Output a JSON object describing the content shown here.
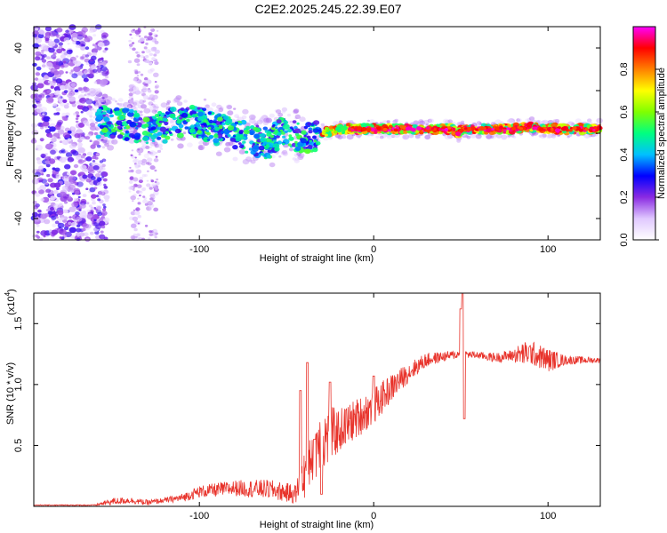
{
  "title": "C2E2.2025.245.22.39.E07",
  "chart_data": [
    {
      "type": "heatmap",
      "title": "",
      "xlabel": "Height of straight line (km)",
      "ylabel": "Frequency (Hz)",
      "xlim": [
        -195,
        130
      ],
      "ylim": [
        -50,
        50
      ],
      "xticks": [
        -100,
        0,
        100
      ],
      "yticks": [
        -40,
        -20,
        0,
        20,
        40
      ],
      "colorbar": {
        "label": "Normalized spectral amplitude",
        "range": [
          0,
          1
        ],
        "ticks": [
          "0.0",
          "0.2",
          "0.4",
          "0.6",
          "0.8"
        ],
        "tick_values": [
          0.0,
          0.2,
          0.4,
          0.6,
          0.8
        ],
        "colors": [
          "#ffffff",
          "#e0c8ff",
          "#8a2be2",
          "#0000ff",
          "#00c0ff",
          "#00ff80",
          "#80ff00",
          "#ffff00",
          "#ff8000",
          "#ff0000",
          "#ff00ff"
        ]
      },
      "ridge": {
        "x": [
          -152,
          -140,
          -130,
          -120,
          -110,
          -100,
          -90,
          -80,
          -70,
          -60,
          -55,
          -50,
          -40,
          -35,
          -30,
          -20,
          -10,
          0,
          20,
          40,
          45,
          48,
          52,
          60,
          80,
          90,
          100,
          110,
          130
        ],
        "y": [
          5,
          4,
          2,
          3,
          6,
          5,
          2,
          0,
          -3,
          -5,
          0,
          1,
          -3,
          -2,
          0,
          2,
          2,
          2,
          2,
          2,
          2,
          0,
          2,
          2,
          2,
          3,
          2,
          2,
          2
        ]
      }
    },
    {
      "type": "line",
      "title": "",
      "xlabel": "Height of straight line (km)",
      "ylabel": "SNR (10 * v/v)",
      "y_scale_label": "(x10^4)",
      "y_scale_base": "(x10",
      "y_scale_exp": "4",
      "xlim": [
        -195,
        130
      ],
      "ylim": [
        0,
        1.75
      ],
      "xticks": [
        -100,
        0,
        100
      ],
      "yticks": [
        0.5,
        1.0,
        1.5
      ],
      "ytick_labels": [
        "0.5",
        "1.0",
        "1.5"
      ],
      "line_color": "#e8332b",
      "envelope": {
        "x": [
          -195,
          -160,
          -150,
          -140,
          -130,
          -110,
          -100,
          -80,
          -60,
          -45,
          -40,
          -35,
          -30,
          -20,
          -10,
          0,
          10,
          20,
          30,
          40,
          50,
          60,
          70,
          80,
          90,
          100,
          110,
          120,
          130
        ],
        "y": [
          0.01,
          0.01,
          0.04,
          0.05,
          0.03,
          0.07,
          0.12,
          0.15,
          0.14,
          0.1,
          0.25,
          0.5,
          0.55,
          0.62,
          0.72,
          0.82,
          0.97,
          1.1,
          1.2,
          1.23,
          1.25,
          1.24,
          1.22,
          1.24,
          1.26,
          1.2,
          1.2,
          1.2,
          1.2
        ]
      },
      "noise": {
        "x": [
          -195,
          -160,
          -150,
          -120,
          -100,
          -60,
          -45,
          -40,
          -35,
          -30,
          -20,
          0,
          20,
          40,
          60,
          80,
          85,
          100,
          110,
          130
        ],
        "y": [
          0.003,
          0.005,
          0.03,
          0.02,
          0.05,
          0.08,
          0.08,
          0.2,
          0.35,
          0.3,
          0.18,
          0.15,
          0.08,
          0.04,
          0.03,
          0.05,
          0.1,
          0.1,
          0.04,
          0.02
        ]
      },
      "spikes": [
        {
          "x": -42,
          "y": 0.95
        },
        {
          "x": -38,
          "y": 1.18
        },
        {
          "x": -34,
          "y": 0.55
        },
        {
          "x": -30,
          "y": 0.1
        },
        {
          "x": -25,
          "y": 1.02
        },
        {
          "x": 0,
          "y": 1.07
        },
        {
          "x": 50,
          "y": 1.62
        },
        {
          "x": 51,
          "y": 1.75
        },
        {
          "x": 52,
          "y": 0.72
        }
      ]
    }
  ]
}
